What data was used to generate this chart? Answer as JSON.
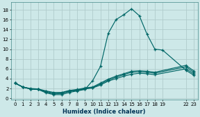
{
  "xlabel": "Humidex (Indice chaleur)",
  "bg_color": "#cde8e8",
  "grid_color": "#b0cccc",
  "line_color": "#006666",
  "xlim": [
    -0.5,
    23.5
  ],
  "ylim": [
    -0.3,
    19.5
  ],
  "xticks": [
    0,
    1,
    2,
    3,
    4,
    5,
    6,
    7,
    8,
    9,
    10,
    11,
    12,
    13,
    14,
    15,
    16,
    17,
    18,
    19,
    22,
    23
  ],
  "yticks": [
    0,
    2,
    4,
    6,
    8,
    10,
    12,
    14,
    16,
    18
  ],
  "line1_x": [
    0,
    1,
    2,
    3,
    4,
    5,
    6,
    7,
    8,
    9,
    10,
    11,
    12,
    13,
    14,
    15,
    16,
    17,
    18,
    19,
    22,
    23
  ],
  "line1_y": [
    3.1,
    2.3,
    1.9,
    1.8,
    1.1,
    0.75,
    0.75,
    1.2,
    1.5,
    1.8,
    3.6,
    6.5,
    13.2,
    16.0,
    17.0,
    18.2,
    16.8,
    13.0,
    10.0,
    9.8,
    5.7,
    4.7
  ],
  "line2_x": [
    0,
    1,
    2,
    3,
    4,
    5,
    6,
    7,
    8,
    9,
    10,
    11,
    12,
    13,
    14,
    15,
    16,
    17,
    18,
    22,
    23
  ],
  "line2_y": [
    3.1,
    2.3,
    1.9,
    1.8,
    1.3,
    0.9,
    1.0,
    1.4,
    1.6,
    1.9,
    2.1,
    2.7,
    3.5,
    4.0,
    4.5,
    4.9,
    5.1,
    5.0,
    4.8,
    6.0,
    5.0
  ],
  "line3_x": [
    0,
    1,
    2,
    3,
    4,
    5,
    6,
    7,
    8,
    9,
    10,
    11,
    12,
    13,
    14,
    15,
    16,
    17,
    18,
    22,
    23
  ],
  "line3_y": [
    3.1,
    2.3,
    1.9,
    1.8,
    1.4,
    1.0,
    1.05,
    1.5,
    1.7,
    2.0,
    2.2,
    2.9,
    3.7,
    4.3,
    4.8,
    5.3,
    5.4,
    5.3,
    5.1,
    6.4,
    5.3
  ],
  "line4_x": [
    0,
    1,
    2,
    3,
    4,
    5,
    6,
    7,
    8,
    9,
    10,
    11,
    12,
    13,
    14,
    15,
    16,
    17,
    18,
    22,
    23
  ],
  "line4_y": [
    3.1,
    2.3,
    2.0,
    1.9,
    1.5,
    1.2,
    1.2,
    1.6,
    1.8,
    2.1,
    2.3,
    3.1,
    3.9,
    4.5,
    5.0,
    5.5,
    5.6,
    5.5,
    5.3,
    6.7,
    5.6
  ]
}
